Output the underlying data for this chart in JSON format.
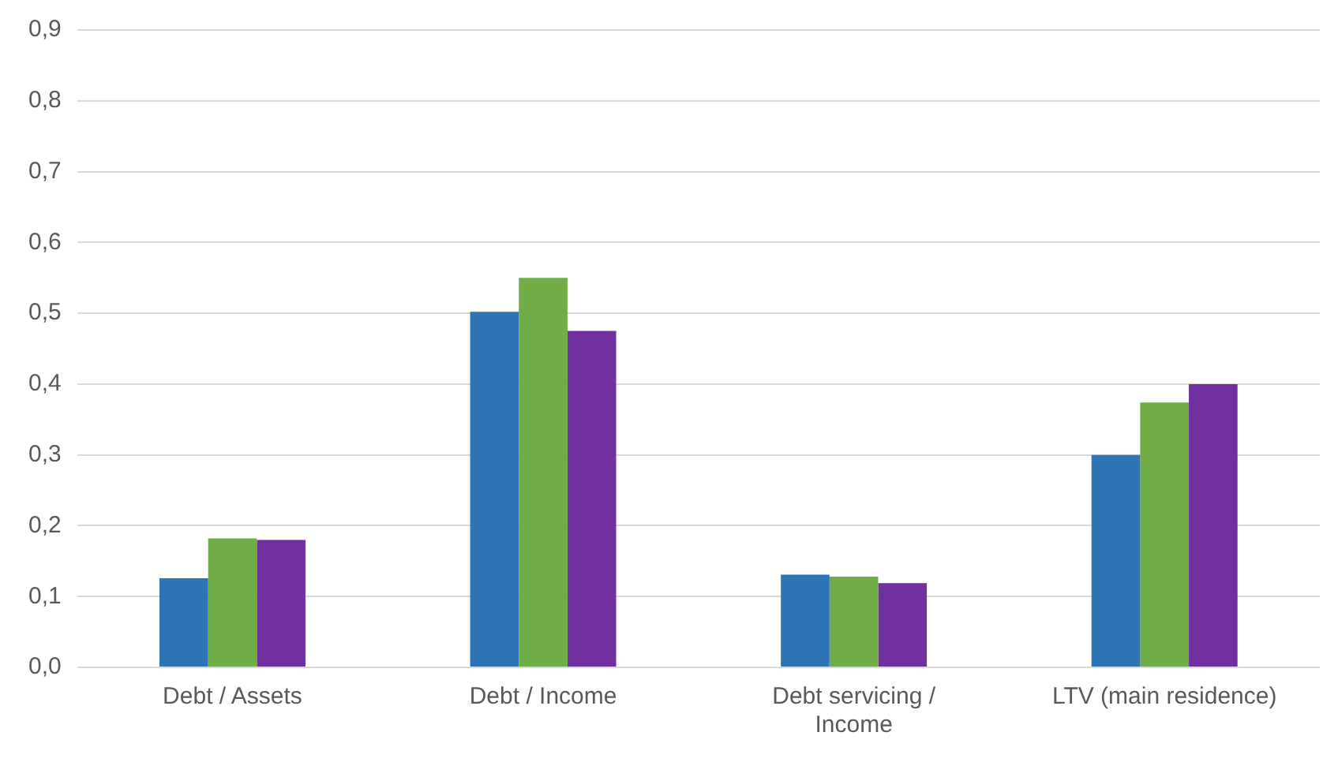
{
  "chart_data": {
    "type": "bar",
    "categories": [
      "Debt / Assets",
      "Debt / Income",
      "Debt servicing / Income",
      "LTV (main residence)"
    ],
    "series": [
      {
        "color": "#2e75b6",
        "values": [
          0.126,
          0.502,
          0.131,
          0.3
        ]
      },
      {
        "color": "#70ad47",
        "values": [
          0.182,
          0.55,
          0.128,
          0.374
        ]
      },
      {
        "color": "#7030a0",
        "values": [
          0.18,
          0.475,
          0.119,
          0.4
        ]
      }
    ],
    "ylim": [
      0,
      0.9
    ],
    "yticks": [
      {
        "value": 0,
        "label": "0,0"
      },
      {
        "value": 0.1,
        "label": "0,1"
      },
      {
        "value": 0.2,
        "label": "0,2"
      },
      {
        "value": 0.3,
        "label": "0,3"
      },
      {
        "value": 0.4,
        "label": "0,4"
      },
      {
        "value": 0.5,
        "label": "0,5"
      },
      {
        "value": 0.6,
        "label": "0,6"
      },
      {
        "value": 0.7,
        "label": "0,7"
      },
      {
        "value": 0.8,
        "label": "0,8"
      },
      {
        "value": 0.9,
        "label": "0,9"
      }
    ],
    "grid": "y",
    "legend": false
  }
}
